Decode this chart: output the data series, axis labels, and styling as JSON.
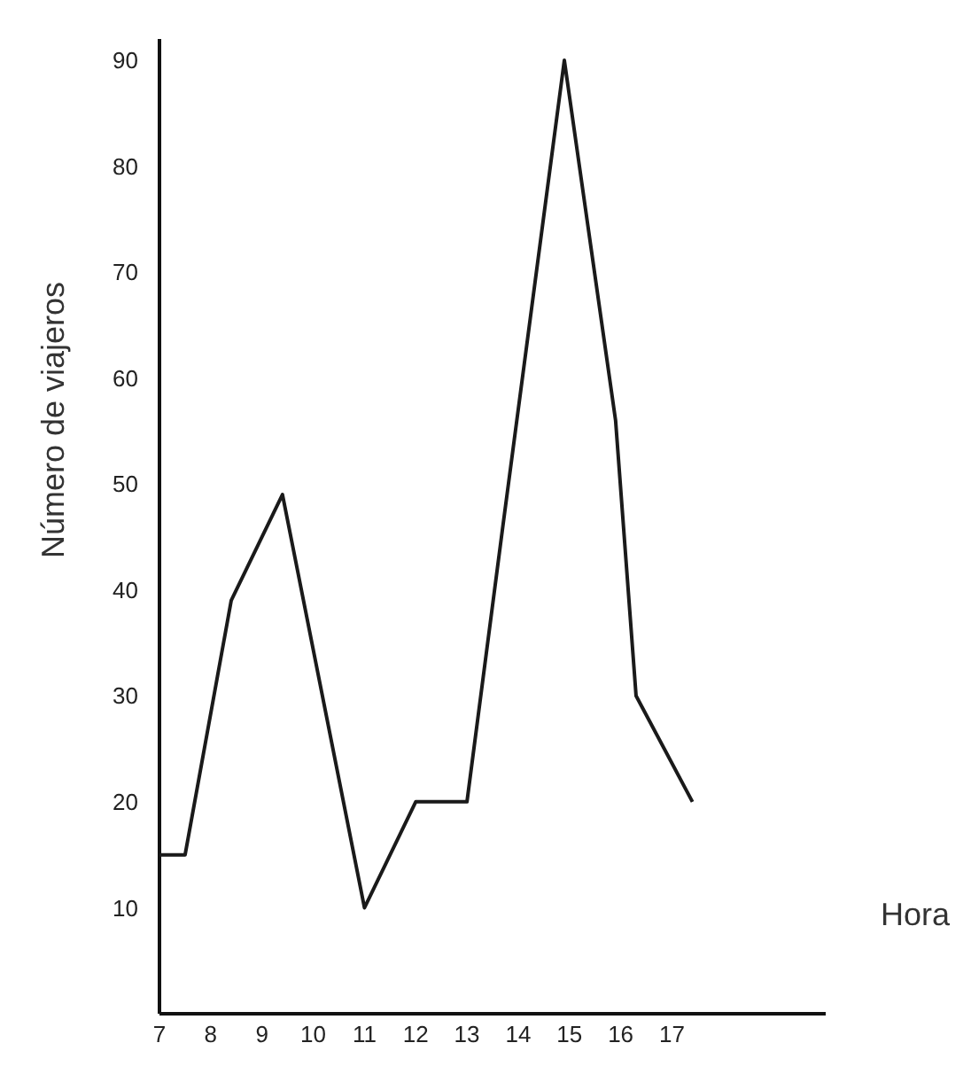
{
  "chart_data": {
    "type": "line",
    "xlabel": "Hora",
    "ylabel": "Número de viajeros",
    "x": [
      7,
      7.5,
      8.4,
      9.4,
      11,
      12,
      13,
      13.7,
      14.9,
      15.9,
      16.3,
      17.4
    ],
    "series": [
      {
        "color": "#1a1a1a",
        "values": [
          15,
          15,
          39,
          49,
          10,
          20,
          20,
          46,
          90,
          56,
          30,
          20
        ]
      }
    ],
    "xlim": [
      7,
      20
    ],
    "xticks": [
      7,
      8,
      9,
      10,
      11,
      12,
      13,
      14,
      15,
      16,
      17
    ],
    "ylim": [
      0,
      92
    ],
    "yticks": [
      10,
      20,
      30,
      40,
      50,
      60,
      70,
      80,
      90
    ],
    "grid": false,
    "marker": "none",
    "line_style": "solid"
  }
}
